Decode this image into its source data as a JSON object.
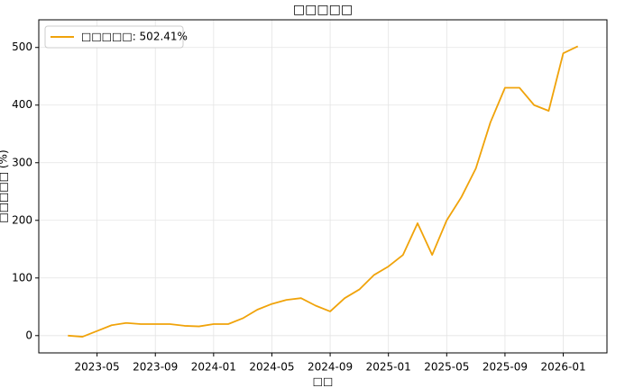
{
  "chart_data": {
    "type": "line",
    "title": "□□□□□",
    "xlabel": "□□",
    "ylabel": "□□□□□ (%)",
    "x": [
      "2023-03",
      "2023-04",
      "2023-05",
      "2023-06",
      "2023-07",
      "2023-08",
      "2023-09",
      "2023-10",
      "2023-11",
      "2023-12",
      "2024-01",
      "2024-02",
      "2024-03",
      "2024-04",
      "2024-05",
      "2024-06",
      "2024-07",
      "2024-08",
      "2024-09",
      "2024-10",
      "2024-11",
      "2024-12",
      "2025-01",
      "2025-02",
      "2025-03",
      "2025-04",
      "2025-05",
      "2025-06",
      "2025-07",
      "2025-08",
      "2025-09",
      "2025-10",
      "2025-11",
      "2025-12",
      "2026-01",
      "2026-02"
    ],
    "series": [
      {
        "name": "□□□□□: 502.41%",
        "color": "#f0a30a",
        "values": [
          0,
          -2,
          8,
          18,
          22,
          20,
          20,
          20,
          17,
          16,
          20,
          20,
          30,
          45,
          55,
          62,
          65,
          52,
          42,
          65,
          80,
          105,
          120,
          140,
          195,
          140,
          200,
          240,
          290,
          370,
          430,
          430,
          400,
          390,
          490,
          502
        ]
      }
    ],
    "xlim": [
      "2023-01",
      "2026-04"
    ],
    "xticks": [
      "2023-05",
      "2023-09",
      "2024-01",
      "2024-05",
      "2024-09",
      "2025-01",
      "2025-05",
      "2025-09",
      "2026-01"
    ],
    "ylim": [
      -30,
      548
    ],
    "yticks": [
      0,
      100,
      200,
      300,
      400,
      500
    ],
    "grid": true,
    "legend": "upper-left"
  }
}
